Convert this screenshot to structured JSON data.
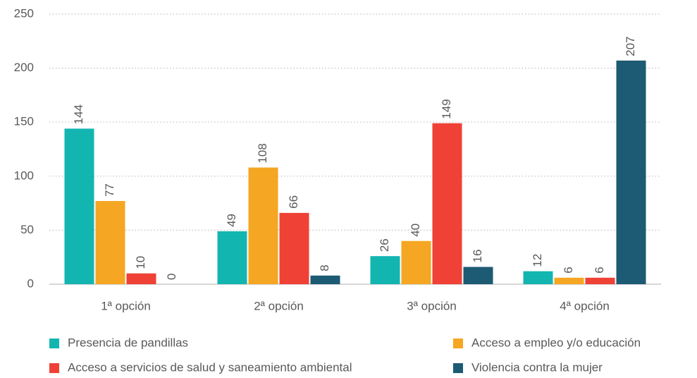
{
  "chart_data": {
    "type": "bar",
    "categories": [
      "1ª opción",
      "2ª opción",
      "3ª opción",
      "4ª opción"
    ],
    "series": [
      {
        "name": "Presencia de pandillas",
        "color": "#13b5b1",
        "values": [
          144,
          49,
          26,
          12
        ]
      },
      {
        "name": "Acceso a empleo y/o educación",
        "color": "#f5a623",
        "values": [
          77,
          108,
          40,
          6
        ]
      },
      {
        "name": "Acceso a servicios de salud y saneamiento ambiental",
        "color": "#ef4136",
        "values": [
          10,
          66,
          149,
          6
        ]
      },
      {
        "name": "Violencia contra la mujer",
        "color": "#1d5a73",
        "values": [
          0,
          8,
          16,
          207
        ]
      }
    ],
    "ylim": [
      0,
      250
    ],
    "yticks": [
      0,
      50,
      100,
      150,
      200,
      250
    ],
    "grid": true
  }
}
